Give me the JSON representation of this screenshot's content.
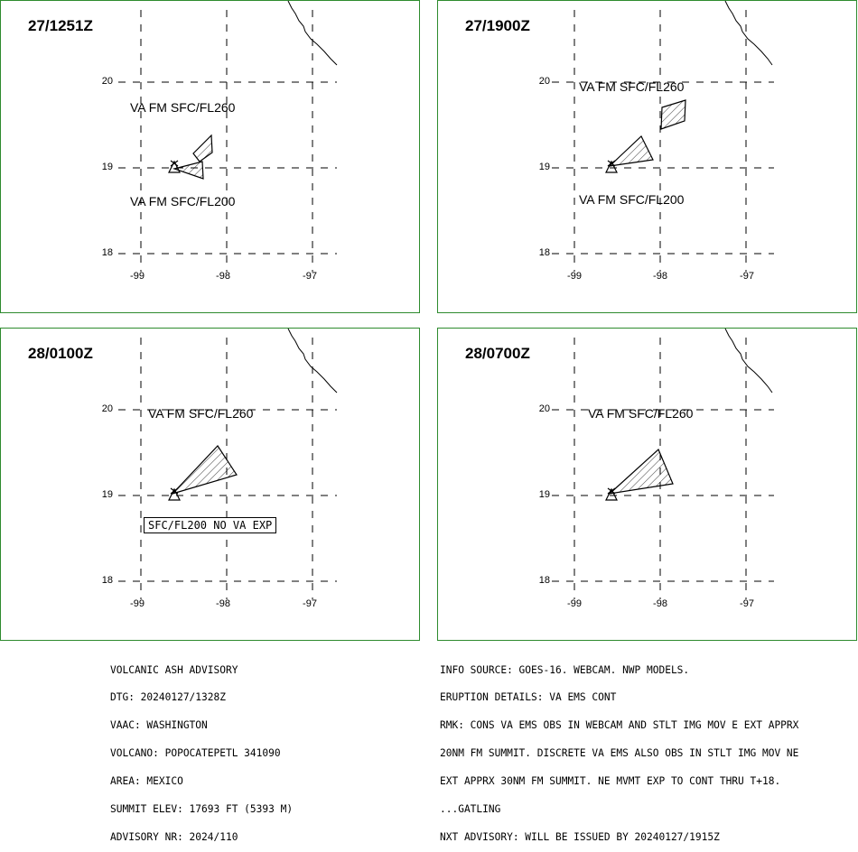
{
  "panels": [
    {
      "time": "27/1251Z",
      "labels": [
        "VA FM SFC/FL260",
        "VA FM SFC/FL200"
      ],
      "boxed_note": ""
    },
    {
      "time": "27/1900Z",
      "labels": [
        "VA FM SFC/FL260",
        "VA FM SFC/FL200"
      ],
      "boxed_note": ""
    },
    {
      "time": "28/0100Z",
      "labels": [
        "VA FM SFC/FL260"
      ],
      "boxed_note": "SFC/FL200 NO VA EXP"
    },
    {
      "time": "28/0700Z",
      "labels": [
        "VA FM SFC/FL260"
      ],
      "boxed_note": ""
    }
  ],
  "axes": {
    "lat_ticks": [
      "20",
      "19",
      "18"
    ],
    "lon_ticks": [
      "-99",
      "-98",
      "-97"
    ]
  },
  "advisory_left": [
    "VOLCANIC ASH ADVISORY",
    "DTG: 20240127/1328Z",
    "VAAC: WASHINGTON",
    "VOLCANO: POPOCATEPETL 341090",
    "AREA: MEXICO",
    "SUMMIT ELEV: 17693 FT (5393 M)",
    "ADVISORY NR: 2024/110"
  ],
  "advisory_right": [
    "INFO SOURCE: GOES-16. WEBCAM. NWP MODELS.",
    "ERUPTION DETAILS: VA EMS CONT",
    "RMK: CONS VA EMS OBS IN WEBCAM AND STLT IMG MOV E EXT APPRX",
    "20NM FM SUMMIT. DISCRETE VA EMS ALSO OBS IN STLT IMG MOV NE",
    "EXT APPRX 30NM FM SUMMIT. NE MVMT EXP TO CONT THRU T+18.",
    "...GATLING",
    "NXT ADVISORY: WILL BE ISSUED BY 20240127/1915Z"
  ],
  "colors": {
    "frame": "#2e8b2e",
    "lines": "#000000"
  }
}
